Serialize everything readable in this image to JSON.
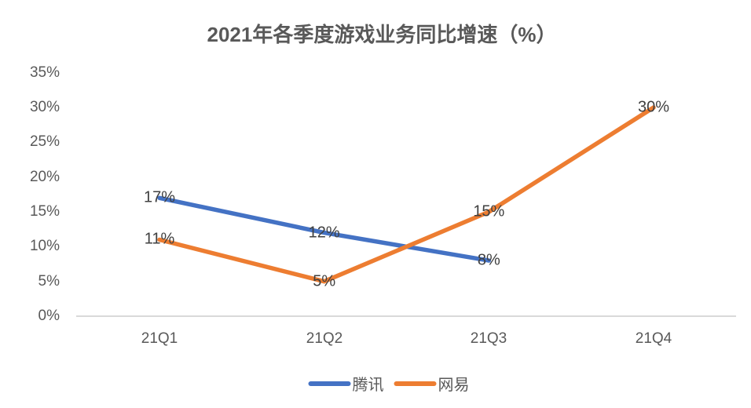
{
  "chart_data": {
    "type": "line",
    "title": "2021年各季度游戏业务同比增速（%）",
    "categories": [
      "21Q1",
      "21Q2",
      "21Q3",
      "21Q4"
    ],
    "series": [
      {
        "name": "腾讯",
        "color": "#4472C4",
        "values": [
          17,
          12,
          8,
          null
        ],
        "labels": [
          "17%",
          "12%",
          "8%"
        ]
      },
      {
        "name": "网易",
        "color": "#ED7D31",
        "values": [
          11,
          5,
          15,
          30
        ],
        "labels": [
          "11%",
          "5%",
          "15%",
          "30%"
        ]
      }
    ],
    "xlabel": "",
    "ylabel": "",
    "ylim": [
      0,
      35
    ],
    "ytick_step": 5,
    "ytick_labels": [
      "0%",
      "5%",
      "10%",
      "15%",
      "20%",
      "25%",
      "30%",
      "35%"
    ],
    "grid": false,
    "data_label_position": "center",
    "legend_position": "bottom"
  },
  "colors": {
    "tencent_line": "#4472C4",
    "netease_line": "#ED7D31",
    "axis_line": "#D9D9D9",
    "tick_text": "#595959",
    "title_text": "#595959",
    "data_label_text": "#404040",
    "background": "#FFFFFF"
  }
}
